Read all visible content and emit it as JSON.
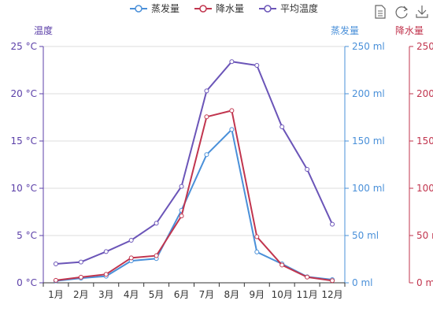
{
  "chart_data": {
    "type": "line",
    "categories": [
      "1月",
      "2月",
      "3月",
      "4月",
      "5月",
      "6月",
      "7月",
      "8月",
      "9月",
      "10月",
      "11月",
      "12月"
    ],
    "legend": {
      "position": "top-center",
      "items": [
        "蒸发量",
        "降水量",
        "平均温度"
      ]
    },
    "toolbox": {
      "icons": [
        "data-view-icon",
        "restore-icon",
        "save-image-icon"
      ]
    },
    "axes": {
      "temp": {
        "name": "温度",
        "min": 0,
        "max": 25,
        "interval": 5,
        "unit": " °C",
        "color": "#5b3fa8"
      },
      "evap": {
        "name": "蒸发量",
        "min": 0,
        "max": 250,
        "interval": 50,
        "unit": " ml",
        "color": "#4a90d9"
      },
      "rain": {
        "name": "降水量",
        "min": 0,
        "max": 250,
        "interval": 50,
        "unit": " ml",
        "color": "#c1354e"
      }
    },
    "grid": true,
    "series": [
      {
        "name": "蒸发量",
        "axis": "evap",
        "color": "#4a90d9",
        "values": [
          2.0,
          4.9,
          7.0,
          23.2,
          25.6,
          76.7,
          135.6,
          162.2,
          32.6,
          20.0,
          6.4,
          3.3
        ]
      },
      {
        "name": "降水量",
        "axis": "rain",
        "color": "#c1354e",
        "values": [
          2.6,
          5.9,
          9.0,
          26.4,
          28.7,
          70.7,
          175.6,
          182.2,
          48.7,
          18.8,
          6.0,
          2.3
        ]
      },
      {
        "name": "平均温度",
        "axis": "temp",
        "color": "#6b55b8",
        "values": [
          2.0,
          2.2,
          3.3,
          4.5,
          6.3,
          10.2,
          20.3,
          23.4,
          23.0,
          16.5,
          12.0,
          6.2
        ]
      }
    ]
  }
}
